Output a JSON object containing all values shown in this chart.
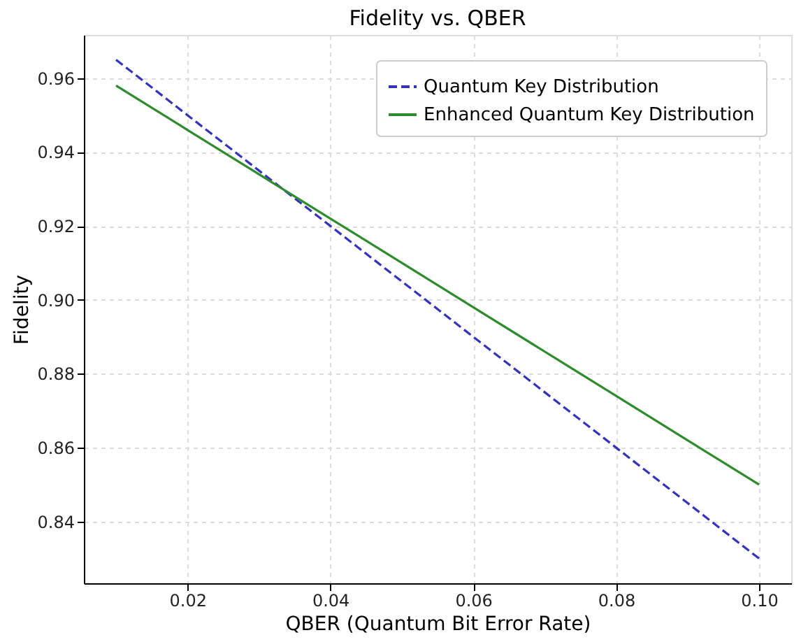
{
  "chart_data": {
    "type": "line",
    "title": "Fidelity vs. QBER",
    "xlabel": "QBER (Quantum Bit Error Rate)",
    "ylabel": "Fidelity",
    "x": [
      0.01,
      0.02,
      0.03,
      0.04,
      0.05,
      0.06,
      0.07,
      0.08,
      0.09,
      0.1
    ],
    "series": [
      {
        "name": "Quantum Key Distribution",
        "color": "#3333bb",
        "line_style": "dashed",
        "values": [
          0.965,
          0.95,
          0.935,
          0.92,
          0.905,
          0.89,
          0.875,
          0.86,
          0.845,
          0.83
        ]
      },
      {
        "name": "Enhanced Quantum Key Distribution",
        "color": "#2e8b2e",
        "line_style": "solid",
        "values": [
          0.958,
          0.946,
          0.934,
          0.922,
          0.91,
          0.898,
          0.886,
          0.874,
          0.862,
          0.85
        ]
      }
    ],
    "xlim": [
      0.0055,
      0.1045
    ],
    "ylim": [
      0.8233,
      0.9717
    ],
    "xticks": [
      0.02,
      0.04,
      0.06,
      0.08,
      {
        "value": 0.1,
        "label": "0.10"
      }
    ],
    "yticks": [
      0.84,
      0.86,
      0.88,
      {
        "value": 0.9,
        "label": "0.90"
      },
      0.92,
      0.94,
      0.96
    ],
    "grid": true,
    "legend": "top right",
    "marker": "none"
  }
}
